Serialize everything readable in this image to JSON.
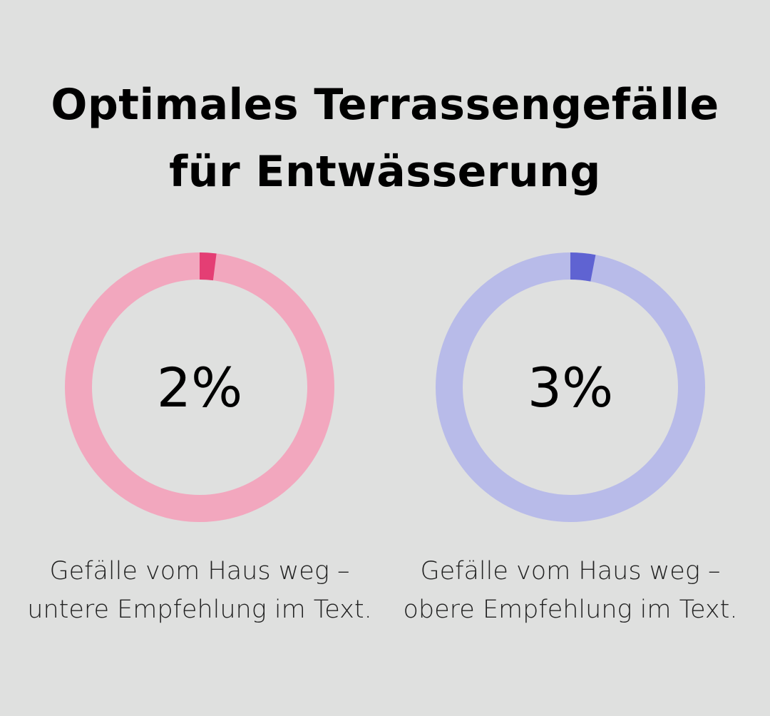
{
  "title_line1": "Optimales Terrassengefälle",
  "title_line2": "für Entwässerung",
  "chart_data": [
    {
      "type": "pie",
      "variant": "donut",
      "value": 2,
      "max": 100,
      "label": "2%",
      "caption": "Gefälle vom Haus weg – untere Empfehlung im Text.",
      "color_filled": "#e43e74",
      "color_track": "#f2a7be"
    },
    {
      "type": "pie",
      "variant": "donut",
      "value": 3,
      "max": 100,
      "label": "3%",
      "caption": "Gefälle vom Haus weg – obere Empfehlung im Text.",
      "color_filled": "#5f63d2",
      "color_track": "#b8bbe9"
    }
  ],
  "background_color": "#dfe0df"
}
